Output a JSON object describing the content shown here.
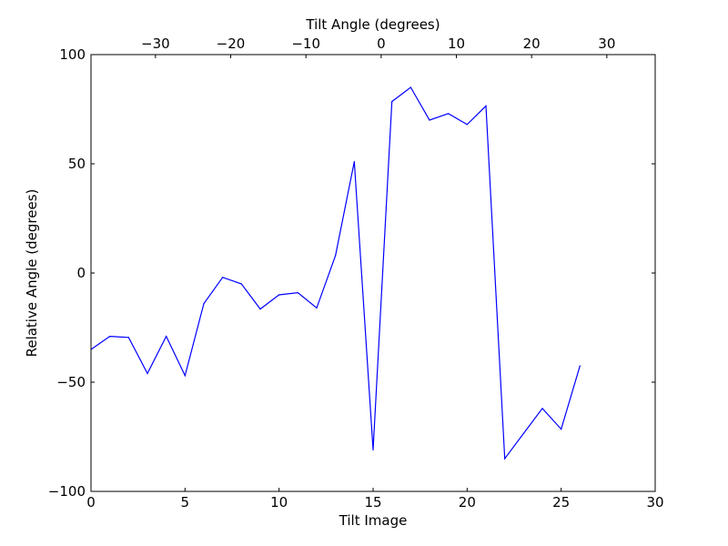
{
  "chart_data": {
    "type": "line",
    "title": "",
    "xlabel": "Tilt Image",
    "ylabel": "Relative Angle (degrees)",
    "top_xlabel": "Tilt Angle (degrees)",
    "xlim": [
      0,
      30
    ],
    "ylim": [
      -100,
      100
    ],
    "top_xlim": [
      -38.57,
      36.43
    ],
    "grid": false,
    "legend": "none",
    "x_ticks": [
      0,
      5,
      10,
      15,
      20,
      25,
      30
    ],
    "x_tick_labels": [
      "0",
      "5",
      "10",
      "15",
      "20",
      "25",
      "30"
    ],
    "y_ticks": [
      100,
      50,
      0,
      -50,
      -100
    ],
    "y_tick_labels": [
      "100",
      "50",
      "0",
      "−50",
      "−100"
    ],
    "top_x_ticks": [
      -30,
      -20,
      -10,
      0,
      10,
      20,
      30
    ],
    "top_x_tick_labels": [
      "−30",
      "−20",
      "−10",
      "0",
      "10",
      "20",
      "30"
    ],
    "line_color": "#0000ff",
    "series": [
      {
        "x": [
          0,
          1,
          2,
          3,
          4,
          5,
          6,
          7,
          8,
          9,
          10,
          11,
          12,
          13,
          14,
          15,
          16,
          17,
          18,
          19,
          20,
          21,
          22,
          23,
          24,
          25,
          26
        ],
        "values": [
          -35,
          -29,
          -29.5,
          -46,
          -29,
          -47,
          -14,
          -2,
          -5,
          -16.5,
          -10,
          -9,
          -16,
          8,
          51,
          -81,
          78.5,
          85,
          70,
          73,
          68,
          76.5,
          -85,
          -73.5,
          -62,
          -71.5,
          -42.5
        ]
      }
    ]
  }
}
